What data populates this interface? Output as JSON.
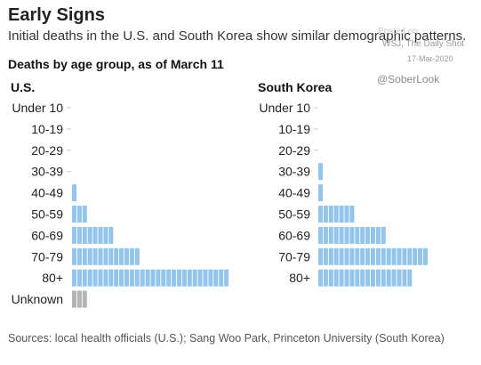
{
  "header": {
    "title": "Early Signs",
    "subtitle": "Initial deaths in the U.S. and South Korea show similar demographic patterns.",
    "subhead": "Deaths by age group, as of March 11"
  },
  "watermark": {
    "posted_on": "Posted on",
    "publisher": "WSJ, The Daily Shot",
    "date": "17-Mar-2020",
    "handle": "@SoberLook"
  },
  "footer": {
    "source": "Sources: local health officials (U.S.); Sang Woo Park, Princeton University (South Korea)"
  },
  "colors": {
    "deaths": "#92c5e9",
    "unknown": "#b5b5b5",
    "tick": "#cccccc"
  },
  "chart_data": [
    {
      "type": "bar",
      "title": "U.S.",
      "unit_note": "each block = one death",
      "categories": [
        "Under 10",
        "10-19",
        "20-29",
        "30-39",
        "40-49",
        "50-59",
        "60-69",
        "70-79",
        "80+",
        "Unknown"
      ],
      "values": [
        0,
        0,
        0,
        0,
        1,
        3,
        8,
        13,
        30,
        3
      ],
      "bar_colors": [
        "deaths",
        "deaths",
        "deaths",
        "deaths",
        "deaths",
        "deaths",
        "deaths",
        "deaths",
        "deaths",
        "unknown"
      ]
    },
    {
      "type": "bar",
      "title": "South Korea",
      "unit_note": "each block = one death",
      "categories": [
        "Under 10",
        "10-19",
        "20-29",
        "30-39",
        "40-49",
        "50-59",
        "60-69",
        "70-79",
        "80+"
      ],
      "values": [
        0,
        0,
        0,
        1,
        1,
        7,
        13,
        21,
        18
      ],
      "bar_colors": [
        "deaths",
        "deaths",
        "deaths",
        "deaths",
        "deaths",
        "deaths",
        "deaths",
        "deaths",
        "deaths"
      ]
    }
  ]
}
